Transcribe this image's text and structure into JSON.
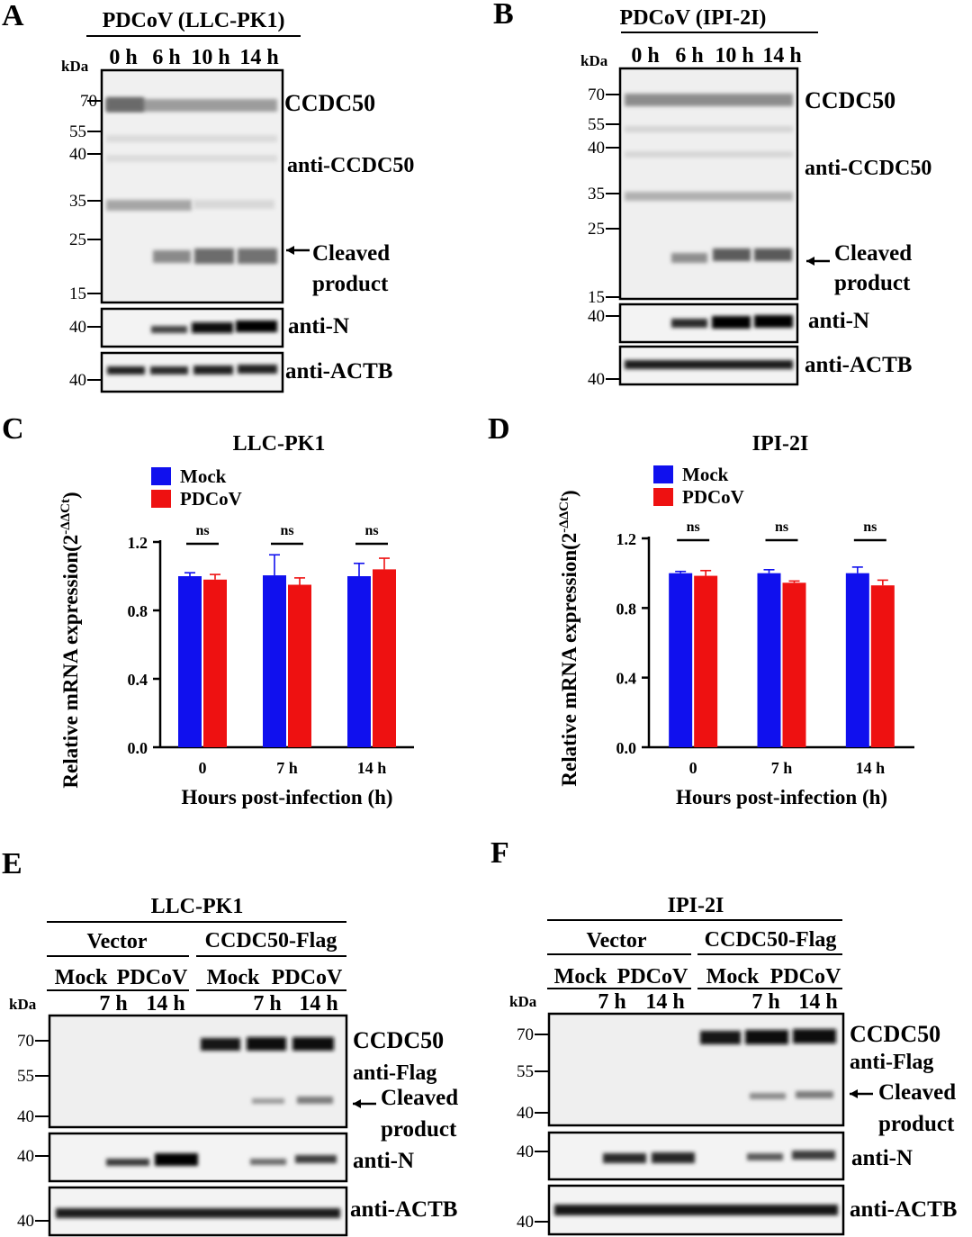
{
  "panels": {
    "A": {
      "letter": "A",
      "title": "PDCoV (LLC-PK1)",
      "lanes": [
        "0 h",
        "6 h",
        "10 h",
        "14 h"
      ],
      "kda_label": "kDa",
      "markers_main": [
        "70",
        "55",
        "40",
        "35",
        "25",
        "15"
      ],
      "markers_n": [
        "40"
      ],
      "markers_actb": [
        "40"
      ],
      "labels": {
        "ccdc50": "CCDC50",
        "anti_ccdc50": "anti-CCDC50",
        "cleaved_line1": "Cleaved",
        "cleaved_line2": "product",
        "anti_n": "anti-N",
        "anti_actb": "anti-ACTB"
      }
    },
    "B": {
      "letter": "B",
      "title": "PDCoV (IPI-2I)",
      "lanes": [
        "0 h",
        "6 h",
        "10 h",
        "14 h"
      ],
      "kda_label": "kDa",
      "markers_main": [
        "70",
        "55",
        "40",
        "35",
        "25",
        "15"
      ],
      "markers_n": [
        "40"
      ],
      "markers_actb": [
        "40"
      ],
      "labels": {
        "ccdc50": "CCDC50",
        "anti_ccdc50": "anti-CCDC50",
        "cleaved_line1": "Cleaved",
        "cleaved_line2": "product",
        "anti_n": "anti-N",
        "anti_actb": "anti-ACTB"
      }
    },
    "C": {
      "letter": "C"
    },
    "D": {
      "letter": "D"
    },
    "E": {
      "letter": "E",
      "title": "LLC-PK1",
      "groups": [
        "Vector",
        "CCDC50-Flag"
      ],
      "subgroups": [
        "Mock",
        "PDCoV",
        "Mock",
        "PDCoV"
      ],
      "times": [
        "7 h",
        "14 h",
        "7 h",
        "14 h"
      ],
      "kda_label": "kDa",
      "markers_main": [
        "70",
        "55",
        "40"
      ],
      "markers_n": [
        "40"
      ],
      "markers_actb": [
        "40"
      ],
      "labels": {
        "ccdc50": "CCDC50",
        "anti_flag": "anti-Flag",
        "cleaved_line1": "Cleaved",
        "cleaved_line2": "product",
        "anti_n": "anti-N",
        "anti_actb": "anti-ACTB"
      }
    },
    "F": {
      "letter": "F",
      "title": "IPI-2I",
      "groups": [
        "Vector",
        "CCDC50-Flag"
      ],
      "subgroups": [
        "Mock",
        "PDCoV",
        "Mock",
        "PDCoV"
      ],
      "times": [
        "7 h",
        "14 h",
        "7 h",
        "14 h"
      ],
      "kda_label": "kDa",
      "markers_main": [
        "70",
        "55",
        "40"
      ],
      "markers_n": [
        "40"
      ],
      "markers_actb": [
        "40"
      ],
      "labels": {
        "ccdc50": "CCDC50",
        "anti_flag": "anti-Flag",
        "cleaved_line1": "Cleaved",
        "cleaved_line2": "product",
        "anti_n": "anti-N",
        "anti_actb": "anti-ACTB"
      }
    }
  },
  "chart_data": [
    {
      "type": "bar",
      "title": "LLC-PK1",
      "xlabel": "Hours post-infection (h)",
      "ylabel_main": "Relative mRNA expression(2",
      "ylabel_sup": "-ΔΔCt",
      "ylabel_end": ")",
      "categories": [
        "0",
        "7 h",
        "14 h"
      ],
      "series": [
        {
          "name": "Mock",
          "color": "#1010ee",
          "values": [
            1.0,
            1.005,
            1.0
          ],
          "errors": [
            0.02,
            0.12,
            0.075
          ]
        },
        {
          "name": "PDCoV",
          "color": "#ee1111",
          "values": [
            0.98,
            0.95,
            1.04
          ],
          "errors": [
            0.03,
            0.04,
            0.065
          ]
        }
      ],
      "yticks": [
        "0.0",
        "0.4",
        "0.8",
        "1.2"
      ],
      "ylim": [
        0,
        1.2
      ],
      "annotations": [
        "ns",
        "ns",
        "ns"
      ]
    },
    {
      "type": "bar",
      "title": "IPI-2I",
      "xlabel": "Hours post-infection (h)",
      "ylabel_main": "Relative mRNA expression(2",
      "ylabel_sup": "-ΔΔCt",
      "ylabel_end": ")",
      "categories": [
        "0",
        "7 h",
        "14 h"
      ],
      "series": [
        {
          "name": "Mock",
          "color": "#1010ee",
          "values": [
            1.0,
            1.0,
            1.0
          ],
          "errors": [
            0.01,
            0.02,
            0.035
          ]
        },
        {
          "name": "PDCoV",
          "color": "#ee1111",
          "values": [
            0.985,
            0.945,
            0.93
          ],
          "errors": [
            0.03,
            0.01,
            0.03
          ]
        }
      ],
      "yticks": [
        "0.0",
        "0.4",
        "0.8",
        "1.2"
      ],
      "ylim": [
        0,
        1.2
      ],
      "annotations": [
        "ns",
        "ns",
        "ns"
      ]
    }
  ]
}
